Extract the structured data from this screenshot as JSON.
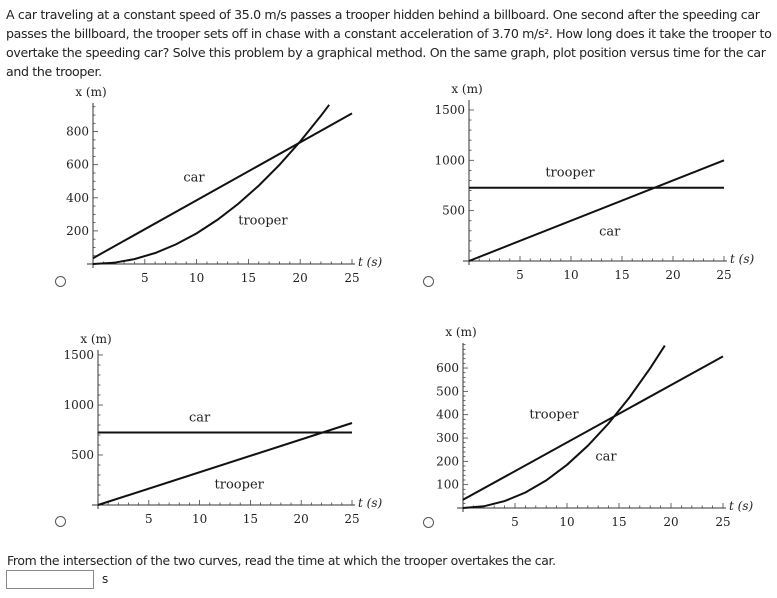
{
  "question": {
    "text": "A car traveling at a constant speed of 35.0 m/s passes a trooper hidden behind a billboard. One second after the speeding car passes the billboard, the trooper sets off in chase with a constant acceleration of 3.70 m/s². How long does it take the trooper to overtake the speeding car? Solve this problem by a graphical method. On the same graph, plot position versus time for the car and the trooper."
  },
  "footer": {
    "prompt": "From the intersection of the two curves, read the time at which the trooper overtakes the car.",
    "answer_value": "",
    "unit": "s"
  },
  "options": [
    {
      "selected": false
    },
    {
      "selected": false
    },
    {
      "selected": false
    },
    {
      "selected": false
    }
  ],
  "chart_data": [
    {
      "type": "line",
      "xlabel": "t (s)",
      "ylabel": "x (m)",
      "xlim": [
        0,
        25
      ],
      "ylim": [
        0,
        960
      ],
      "xticks": [
        5,
        10,
        15,
        20,
        25
      ],
      "yticks": [
        200,
        400,
        600,
        800
      ],
      "series": [
        {
          "name": "car",
          "x": [
            0,
            25
          ],
          "y": [
            35,
            910
          ]
        },
        {
          "name": "trooper",
          "x": [
            0,
            2,
            4,
            6,
            8,
            10,
            12,
            14,
            16,
            18,
            20,
            22,
            22.8
          ],
          "y": [
            0,
            7.4,
            29.6,
            66.6,
            118.4,
            185,
            266.4,
            362.6,
            473.6,
            599.4,
            740,
            895.4,
            961.7
          ]
        }
      ],
      "annotations": [
        {
          "text": "car",
          "t": 9.75,
          "x": 520
        },
        {
          "text": "trooper",
          "t": 16.4,
          "x": 260
        }
      ]
    },
    {
      "type": "line",
      "xlabel": "t (s)",
      "ylabel": "x (m)",
      "xlim": [
        0,
        25
      ],
      "ylim": [
        0,
        1500
      ],
      "xticks": [
        5,
        10,
        15,
        20,
        25
      ],
      "yticks": [
        500,
        1000,
        1500
      ],
      "series": [
        {
          "name": "trooper",
          "x": [
            0,
            25
          ],
          "y": [
            727,
            727
          ]
        },
        {
          "name": "car",
          "x": [
            0,
            25
          ],
          "y": [
            0,
            1000
          ]
        }
      ],
      "annotations": [
        {
          "text": "trooper",
          "t": 9.9,
          "x": 874
        },
        {
          "text": "car",
          "t": 13.8,
          "x": 288
        }
      ]
    },
    {
      "type": "line",
      "xlabel": "t (s)",
      "ylabel": "x (m)",
      "xlim": [
        0,
        25
      ],
      "ylim": [
        0,
        1500
      ],
      "xticks": [
        5,
        10,
        15,
        20,
        25
      ],
      "yticks": [
        500,
        1000,
        1500
      ],
      "series": [
        {
          "name": "car",
          "x": [
            0,
            25
          ],
          "y": [
            725,
            725
          ]
        },
        {
          "name": "trooper",
          "x": [
            0,
            25
          ],
          "y": [
            0,
            820
          ]
        }
      ],
      "annotations": [
        {
          "text": "car",
          "t": 10.0,
          "x": 870
        },
        {
          "text": "trooper",
          "t": 13.9,
          "x": 200
        }
      ]
    },
    {
      "type": "line",
      "xlabel": "t (s)",
      "ylabel": "x (m)",
      "xlim": [
        0,
        25
      ],
      "ylim": [
        0,
        700
      ],
      "xticks": [
        5,
        10,
        15,
        20,
        25
      ],
      "yticks": [
        100,
        200,
        300,
        400,
        500,
        600
      ],
      "series": [
        {
          "name": "trooper",
          "x": [
            0,
            25
          ],
          "y": [
            35,
            650
          ]
        },
        {
          "name": "car",
          "x": [
            0,
            2,
            4,
            6,
            8,
            10,
            12,
            14,
            16,
            18,
            19.4
          ],
          "y": [
            0,
            7.4,
            29.6,
            66.6,
            118.4,
            185,
            266.4,
            362.6,
            473.6,
            599.4,
            696.3
          ]
        }
      ],
      "annotations": [
        {
          "text": "trooper",
          "t": 8.75,
          "x": 399
        },
        {
          "text": "car",
          "t": 13.75,
          "x": 219
        }
      ]
    }
  ]
}
